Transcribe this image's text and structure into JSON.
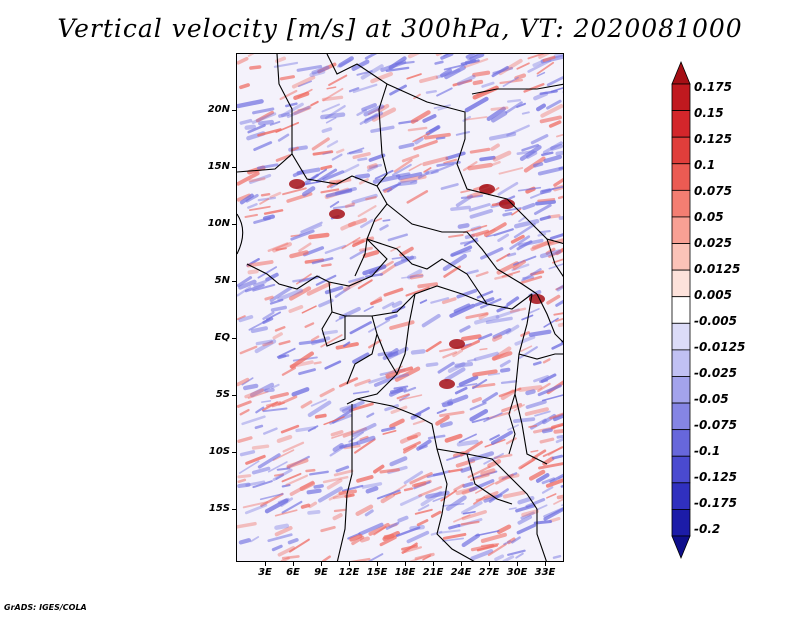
{
  "title": "Vertical velocity [m/s] at 300hPa, VT: 2020081000",
  "footer": "GrADS: IGES/COLA",
  "lat_labels": [
    "20N",
    "15N",
    "10N",
    "5N",
    "EQ",
    "5S",
    "10S",
    "15S"
  ],
  "lon_labels": [
    "3E",
    "6E",
    "9E",
    "12E",
    "15E",
    "18E",
    "21E",
    "24E",
    "27E",
    "30E",
    "33E"
  ],
  "colorbar": {
    "labels": [
      "0.175",
      "0.15",
      "0.125",
      "0.1",
      "0.075",
      "0.05",
      "0.025",
      "0.0125",
      "0.005",
      "-0.005",
      "-0.0125",
      "-0.025",
      "-0.05",
      "-0.075",
      "-0.1",
      "-0.125",
      "-0.175",
      "-0.2"
    ],
    "colors": [
      "#a50f15",
      "#c0191f",
      "#d3262b",
      "#e03e3b",
      "#eb5b53",
      "#f37e72",
      "#f8a094",
      "#fbc3b8",
      "#fde2db",
      "#ffffff",
      "#dcdcf8",
      "#c1c1f3",
      "#a3a3ec",
      "#8585e4",
      "#6767db",
      "#4a4ad0",
      "#3030bf",
      "#1c1ca8",
      "#0f0f8c"
    ]
  },
  "map_colors": {
    "positive": "#ef6b62",
    "negative": "#6f6fe0",
    "boundary": "#000000"
  }
}
